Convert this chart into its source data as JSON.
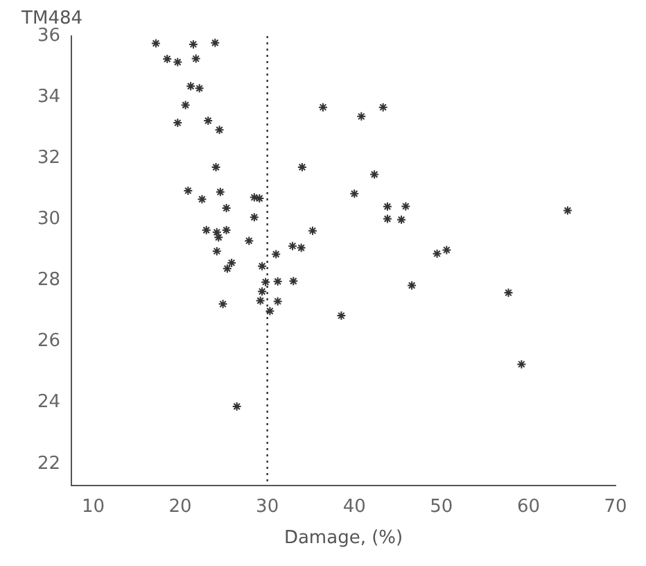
{
  "chart_data": {
    "type": "scatter",
    "xlabel": "Damage, (%)",
    "ylabel": "TM484",
    "marker": "cross",
    "grid": false,
    "xlim": [
      7.5,
      70
    ],
    "xticks": [
      10,
      20,
      30,
      40,
      50,
      60,
      70
    ],
    "ylim": [
      21.3,
      36
    ],
    "yticks": [
      22,
      24,
      26,
      28,
      30,
      32,
      34,
      36
    ],
    "ref_lines": [
      {
        "axis": "x",
        "value": 30,
        "line_style": "dotted",
        "color": "#333333"
      }
    ],
    "series": [
      {
        "color": "#333333",
        "x": [
          17.2,
          21.5,
          24.0,
          18.5,
          19.7,
          21.8,
          21.2,
          22.2,
          20.6,
          19.7,
          23.2,
          24.5,
          24.1,
          34.0,
          20.9,
          24.6,
          22.5,
          28.5,
          29.1,
          25.3,
          28.5,
          23.0,
          24.2,
          25.3,
          24.4,
          27.9,
          32.9,
          33.9,
          31.0,
          24.2,
          25.9,
          25.4,
          29.4,
          29.8,
          31.2,
          33.0,
          29.4,
          29.2,
          31.2,
          24.9,
          30.3,
          26.5,
          36.4,
          40.8,
          43.3,
          42.3,
          40.0,
          43.8,
          45.9,
          43.8,
          45.4,
          64.5,
          35.2,
          49.5,
          50.6,
          46.6,
          57.7,
          38.5,
          59.2
        ],
        "values": [
          35.76,
          35.73,
          35.78,
          35.25,
          35.15,
          35.26,
          34.36,
          34.29,
          33.74,
          33.16,
          33.23,
          32.93,
          31.71,
          31.71,
          30.94,
          30.9,
          30.66,
          30.72,
          30.69,
          30.37,
          30.07,
          29.65,
          29.58,
          29.65,
          29.41,
          29.3,
          29.13,
          29.07,
          28.86,
          28.96,
          28.58,
          28.39,
          28.47,
          27.95,
          27.97,
          27.98,
          27.64,
          27.34,
          27.32,
          27.23,
          27.0,
          23.88,
          33.67,
          33.37,
          33.67,
          31.47,
          30.84,
          30.42,
          30.43,
          30.02,
          29.99,
          30.29,
          29.63,
          28.88,
          29.0,
          27.84,
          27.6,
          26.85,
          25.26
        ]
      }
    ]
  }
}
